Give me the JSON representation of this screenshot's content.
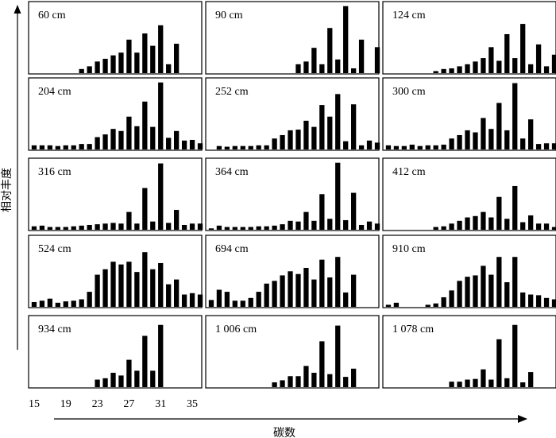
{
  "chart_data": {
    "type": "bar",
    "xlabel": "碳数",
    "ylabel": "相对丰度",
    "xticks": [
      15,
      19,
      23,
      27,
      31,
      35
    ],
    "x": [
      15,
      16,
      17,
      18,
      19,
      20,
      21,
      22,
      23,
      24,
      25,
      26,
      27,
      28,
      29,
      30,
      31,
      32,
      33,
      34,
      35,
      36
    ],
    "panels": [
      {
        "label": "60 cm",
        "values": [
          0,
          0,
          0,
          0,
          0,
          0,
          0.06,
          0.1,
          0.17,
          0.21,
          0.26,
          0.3,
          0.49,
          0.3,
          0.58,
          0.4,
          0.7,
          0.13,
          0.43,
          0,
          0,
          0
        ]
      },
      {
        "label": "90 cm",
        "values": [
          0,
          0,
          0,
          0,
          0,
          0,
          0,
          0,
          0,
          0,
          0,
          0.13,
          0.17,
          0.37,
          0.13,
          0.66,
          0.2,
          0.98,
          0.07,
          0.49,
          0,
          0.38
        ]
      },
      {
        "label": "124 cm",
        "values": [
          0,
          0,
          0,
          0,
          0,
          0,
          0.03,
          0.06,
          0.07,
          0.1,
          0.13,
          0.17,
          0.22,
          0.38,
          0.18,
          0.57,
          0.22,
          0.72,
          0.13,
          0.42,
          0.1,
          0.27
        ]
      },
      {
        "label": "204 cm",
        "values": [
          0.06,
          0.06,
          0.06,
          0.05,
          0.06,
          0.06,
          0.08,
          0.08,
          0.18,
          0.22,
          0.3,
          0.27,
          0.48,
          0.34,
          0.7,
          0.33,
          0.98,
          0.17,
          0.27,
          0.13,
          0.14,
          0.09
        ]
      },
      {
        "label": "252 cm",
        "values": [
          0,
          0.05,
          0.04,
          0.05,
          0.05,
          0.05,
          0.06,
          0.06,
          0.16,
          0.21,
          0.28,
          0.29,
          0.42,
          0.33,
          0.65,
          0.48,
          0.81,
          0.12,
          0.66,
          0.06,
          0.13,
          0.1
        ]
      },
      {
        "label": "300 cm",
        "values": [
          0.06,
          0.05,
          0.05,
          0.07,
          0.05,
          0.06,
          0.06,
          0.07,
          0.16,
          0.21,
          0.28,
          0.25,
          0.46,
          0.3,
          0.68,
          0.28,
          0.97,
          0.16,
          0.44,
          0.08,
          0.09,
          0.09
        ]
      },
      {
        "label": "316 cm",
        "values": [
          0.05,
          0.06,
          0.04,
          0.04,
          0.04,
          0.05,
          0.06,
          0.07,
          0.08,
          0.09,
          0.1,
          0.09,
          0.26,
          0.09,
          0.61,
          0.12,
          0.97,
          0.1,
          0.29,
          0.07,
          0.09,
          0.09
        ]
      },
      {
        "label": "364 cm",
        "values": [
          0.02,
          0.06,
          0.04,
          0.04,
          0.04,
          0.04,
          0.05,
          0.05,
          0.06,
          0.08,
          0.13,
          0.12,
          0.26,
          0.13,
          0.52,
          0.16,
          0.98,
          0.14,
          0.54,
          0.07,
          0.12,
          0.09
        ]
      },
      {
        "label": "412 cm",
        "values": [
          0,
          0,
          0,
          0,
          0,
          0,
          0.04,
          0.05,
          0.09,
          0.13,
          0.18,
          0.2,
          0.26,
          0.18,
          0.48,
          0.16,
          0.64,
          0.11,
          0.21,
          0.09,
          0.09,
          0.04
        ]
      },
      {
        "label": "524 cm",
        "values": [
          0.07,
          0.09,
          0.12,
          0.06,
          0.08,
          0.09,
          0.11,
          0.22,
          0.47,
          0.55,
          0.66,
          0.62,
          0.66,
          0.51,
          0.8,
          0.55,
          0.64,
          0.33,
          0.4,
          0.18,
          0.2,
          0.18
        ]
      },
      {
        "label": "694 cm",
        "values": [
          0.1,
          0.25,
          0.22,
          0.09,
          0.09,
          0.13,
          0.22,
          0.34,
          0.38,
          0.46,
          0.52,
          0.48,
          0.57,
          0.4,
          0.69,
          0.43,
          0.73,
          0.21,
          0.47,
          0,
          0,
          0
        ]
      },
      {
        "label": "910 cm",
        "values": [
          0.03,
          0.06,
          0,
          0,
          0,
          0.03,
          0.05,
          0.14,
          0.24,
          0.38,
          0.44,
          0.46,
          0.6,
          0.47,
          0.73,
          0.36,
          0.73,
          0.21,
          0.18,
          0.17,
          0.13,
          0.11
        ]
      },
      {
        "label": "934 cm",
        "values": [
          0,
          0,
          0,
          0,
          0,
          0,
          0,
          0,
          0.11,
          0.13,
          0.21,
          0.17,
          0.4,
          0.24,
          0.75,
          0.24,
          0.91,
          0,
          0,
          0,
          0,
          0
        ]
      },
      {
        "label": "1 006 cm",
        "values": [
          0,
          0,
          0,
          0,
          0,
          0,
          0,
          0,
          0.07,
          0.1,
          0.16,
          0.16,
          0.31,
          0.21,
          0.67,
          0.19,
          0.9,
          0.15,
          0.27,
          0,
          0,
          0
        ]
      },
      {
        "label": "1 078 cm",
        "values": [
          0,
          0,
          0,
          0,
          0,
          0,
          0,
          0,
          0.08,
          0.08,
          0.11,
          0.12,
          0.26,
          0.11,
          0.7,
          0.13,
          0.91,
          0.07,
          0.22,
          0,
          0,
          0
        ]
      }
    ]
  }
}
